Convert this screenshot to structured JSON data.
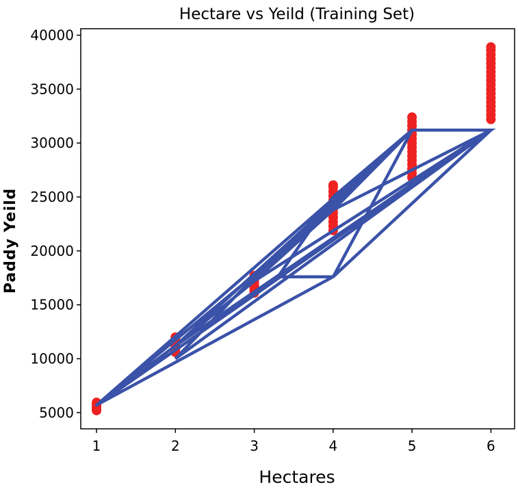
{
  "chart_data": {
    "type": "scatter",
    "title": "Hectare vs Yeild (Training Set)",
    "xlabel": "Hectares",
    "ylabel": "Paddy Yeild",
    "xlim": [
      0.8,
      6.3
    ],
    "ylim": [
      3500,
      40600
    ],
    "x_ticks": [
      1,
      2,
      3,
      4,
      5,
      6
    ],
    "y_ticks": [
      5000,
      10000,
      15000,
      20000,
      25000,
      30000,
      35000,
      40000
    ],
    "grid": false,
    "legend": "none",
    "series": [
      {
        "kind": "scatter",
        "color": "#ee2222",
        "points": [
          [
            1,
            5200
          ],
          [
            1,
            5350
          ],
          [
            1,
            5500
          ],
          [
            1,
            5650
          ],
          [
            1,
            5800
          ],
          [
            1,
            5950
          ],
          [
            2,
            10600
          ],
          [
            2,
            10800
          ],
          [
            2,
            11000
          ],
          [
            2,
            11200
          ],
          [
            2,
            11400
          ],
          [
            2,
            11600
          ],
          [
            2,
            11800
          ],
          [
            2,
            12000
          ],
          [
            3,
            16100
          ],
          [
            3,
            16300
          ],
          [
            3,
            16500
          ],
          [
            3,
            16700
          ],
          [
            3,
            16900
          ],
          [
            3,
            17100
          ],
          [
            3,
            17300
          ],
          [
            3,
            17500
          ],
          [
            3,
            17700
          ],
          [
            4,
            21900
          ],
          [
            4,
            22300
          ],
          [
            4,
            22700
          ],
          [
            4,
            23100
          ],
          [
            4,
            23500
          ],
          [
            4,
            23900
          ],
          [
            4,
            24300
          ],
          [
            4,
            24700
          ],
          [
            4,
            25100
          ],
          [
            4,
            25500
          ],
          [
            4,
            25900
          ],
          [
            4,
            26100
          ],
          [
            5,
            26800
          ],
          [
            5,
            27200
          ],
          [
            5,
            27600
          ],
          [
            5,
            28000
          ],
          [
            5,
            28400
          ],
          [
            5,
            28800
          ],
          [
            5,
            29200
          ],
          [
            5,
            29600
          ],
          [
            5,
            30000
          ],
          [
            5,
            30400
          ],
          [
            5,
            30800
          ],
          [
            5,
            31200
          ],
          [
            5,
            31600
          ],
          [
            5,
            32000
          ],
          [
            5,
            32400
          ],
          [
            6,
            32200
          ],
          [
            6,
            32600
          ],
          [
            6,
            33000
          ],
          [
            6,
            33400
          ],
          [
            6,
            33800
          ],
          [
            6,
            34200
          ],
          [
            6,
            34600
          ],
          [
            6,
            35000
          ],
          [
            6,
            35400
          ],
          [
            6,
            35800
          ],
          [
            6,
            36200
          ],
          [
            6,
            36600
          ],
          [
            6,
            37000
          ],
          [
            6,
            37400
          ],
          [
            6,
            37800
          ],
          [
            6,
            38200
          ],
          [
            6,
            38600
          ],
          [
            6,
            38900
          ]
        ]
      },
      {
        "kind": "line",
        "color": "#3a52a8",
        "points": [
          [
            1,
            5700
          ],
          [
            2,
            11200
          ],
          [
            3,
            17200
          ],
          [
            4,
            23800
          ],
          [
            5,
            31200
          ],
          [
            6,
            31200
          ],
          [
            3.3,
            17600
          ],
          [
            4,
            17600
          ],
          [
            1,
            5700
          ],
          [
            5,
            31200
          ],
          [
            3,
            17200
          ],
          [
            6,
            31200
          ],
          [
            1,
            5700
          ],
          [
            4,
            23800
          ],
          [
            6,
            31200
          ],
          [
            4,
            17600
          ],
          [
            5,
            31200
          ],
          [
            2,
            11200
          ],
          [
            6,
            31200
          ],
          [
            1,
            5700
          ],
          [
            4,
            17600
          ],
          [
            3.3,
            17600
          ],
          [
            4,
            25000
          ],
          [
            5,
            31200
          ],
          [
            3,
            17600
          ],
          [
            2,
            10000
          ],
          [
            6,
            31200
          ]
        ]
      }
    ]
  }
}
